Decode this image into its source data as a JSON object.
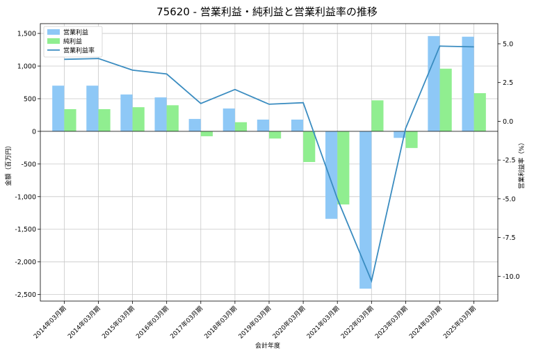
{
  "chart_data": {
    "type": "bar",
    "title": "75620 - 営業利益・純利益と営業利益率の推移",
    "xlabel": "会計年度",
    "ylabel": "金額（百万円）",
    "y2label": "営業利益率（%）",
    "categories": [
      "2014年03月期",
      "2014年03月期",
      "2015年03月期",
      "2016年03月期",
      "2017年03月期",
      "2018年03月期",
      "2019年03月期",
      "2020年03月期",
      "2021年03月期",
      "2022年03月期",
      "2023年03月期",
      "2024年03月期",
      "2025年03月期"
    ],
    "series": [
      {
        "name": "営業利益",
        "kind": "bar",
        "axis": "left",
        "color": "#8ec8f6",
        "values": [
          700,
          700,
          565,
          520,
          190,
          350,
          180,
          180,
          -1340,
          -2410,
          -100,
          1460,
          1450
        ]
      },
      {
        "name": "純利益",
        "kind": "bar",
        "axis": "left",
        "color": "#90ee90",
        "values": [
          340,
          340,
          370,
          400,
          -75,
          140,
          -110,
          -470,
          -1120,
          475,
          -255,
          960,
          585
        ]
      },
      {
        "name": "営業利益率",
        "kind": "line",
        "axis": "right",
        "color": "#3a8cc0",
        "values": [
          4.0,
          4.05,
          3.3,
          3.05,
          1.15,
          2.05,
          1.1,
          1.2,
          -5.0,
          -10.3,
          -0.45,
          4.85,
          4.8
        ]
      }
    ],
    "ylim": [
      -2600,
      1650
    ],
    "y2lim": [
      -11.6,
      6.3
    ],
    "yticks": [
      -2500,
      -2000,
      -1500,
      -1000,
      -500,
      0,
      500,
      1000,
      1500
    ],
    "ytick_labels": [
      "-2,500",
      "-2,000",
      "-1,500",
      "-1,000",
      "-500",
      "0",
      "500",
      "1,000",
      "1,500"
    ],
    "y2ticks": [
      -10,
      -7.5,
      -5,
      -2.5,
      0,
      2.5,
      5
    ],
    "y2tick_labels": [
      "-10.0",
      "-7.5",
      "-5.0",
      "-2.5",
      "0.0",
      "2.5",
      "5.0"
    ],
    "grid": true,
    "legend": "top-left"
  }
}
